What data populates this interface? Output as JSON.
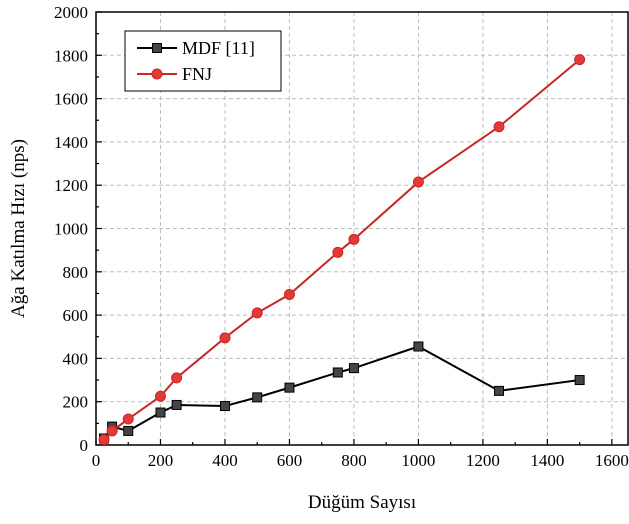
{
  "chart_data": {
    "type": "line",
    "xlabel": "Düğüm Sayısı",
    "ylabel": "Ağa Katılma Hızı (nps)",
    "xlim": [
      0,
      1650
    ],
    "ylim": [
      0,
      2000
    ],
    "xticks": [
      0,
      200,
      400,
      600,
      800,
      1000,
      1200,
      1400,
      1600
    ],
    "yticks": [
      0,
      200,
      400,
      600,
      800,
      1000,
      1200,
      1400,
      1600,
      1800,
      2000
    ],
    "grid": true,
    "legend_position": "top-left",
    "series": [
      {
        "name": "MDF [11]",
        "color": "#000000",
        "marker_fill": "#444444",
        "marker": "square",
        "x": [
          25,
          50,
          100,
          200,
          250,
          400,
          500,
          600,
          750,
          800,
          1000,
          1250,
          1500
        ],
        "y": [
          30,
          85,
          65,
          150,
          185,
          180,
          220,
          265,
          335,
          355,
          455,
          250,
          300
        ]
      },
      {
        "name": "FNJ",
        "color": "#c62828",
        "marker_fill": "#e53935",
        "marker": "circle",
        "x": [
          25,
          50,
          100,
          200,
          250,
          400,
          500,
          600,
          750,
          800,
          1000,
          1250,
          1500
        ],
        "y": [
          25,
          65,
          120,
          225,
          310,
          495,
          610,
          695,
          890,
          950,
          1215,
          1470,
          1780
        ]
      }
    ]
  }
}
